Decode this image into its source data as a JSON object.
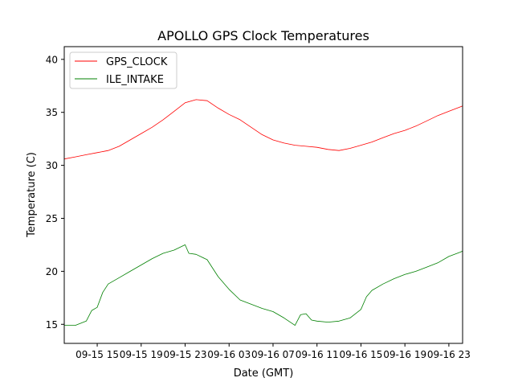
{
  "chart_data": {
    "type": "line",
    "title": "APOLLO GPS Clock Temperatures",
    "xlabel": "Date (GMT)",
    "ylabel": "Temperature (C)",
    "xlim": [
      "09-15 12:00",
      "09-17 00:15"
    ],
    "ylim": [
      13.2,
      41.2
    ],
    "xticks": [
      "09-15 15",
      "09-15 19",
      "09-15 23",
      "09-16 03",
      "09-16 07",
      "09-16 11",
      "09-16 15",
      "09-16 19",
      "09-16 23"
    ],
    "yticks": [
      15,
      20,
      25,
      30,
      35,
      40
    ],
    "grid": false,
    "legend_position": "top-left",
    "series": [
      {
        "name": "GPS_CLOCK",
        "color": "#ff0000",
        "points": [
          [
            "09-15 12:00",
            30.6
          ],
          [
            "09-15 13:00",
            30.8
          ],
          [
            "09-15 14:00",
            31.0
          ],
          [
            "09-15 15:00",
            31.2
          ],
          [
            "09-15 16:00",
            31.4
          ],
          [
            "09-15 17:00",
            31.8
          ],
          [
            "09-15 18:00",
            32.4
          ],
          [
            "09-15 19:00",
            33.0
          ],
          [
            "09-15 20:00",
            33.6
          ],
          [
            "09-15 21:00",
            34.3
          ],
          [
            "09-15 22:00",
            35.1
          ],
          [
            "09-15 23:00",
            35.9
          ],
          [
            "09-16 00:00",
            36.2
          ],
          [
            "09-16 01:00",
            36.1
          ],
          [
            "09-16 02:00",
            35.4
          ],
          [
            "09-16 03:00",
            34.8
          ],
          [
            "09-16 04:00",
            34.3
          ],
          [
            "09-16 05:00",
            33.6
          ],
          [
            "09-16 06:00",
            32.9
          ],
          [
            "09-16 07:00",
            32.4
          ],
          [
            "09-16 08:00",
            32.1
          ],
          [
            "09-16 09:00",
            31.9
          ],
          [
            "09-16 10:00",
            31.8
          ],
          [
            "09-16 11:00",
            31.7
          ],
          [
            "09-16 12:00",
            31.5
          ],
          [
            "09-16 13:00",
            31.4
          ],
          [
            "09-16 14:00",
            31.6
          ],
          [
            "09-16 15:00",
            31.9
          ],
          [
            "09-16 16:00",
            32.2
          ],
          [
            "09-16 17:00",
            32.6
          ],
          [
            "09-16 18:00",
            33.0
          ],
          [
            "09-16 19:00",
            33.3
          ],
          [
            "09-16 20:00",
            33.7
          ],
          [
            "09-16 21:00",
            34.2
          ],
          [
            "09-16 22:00",
            34.7
          ],
          [
            "09-16 23:00",
            35.1
          ],
          [
            "09-17 00:00",
            35.5
          ],
          [
            "09-17 00:15",
            35.6
          ]
        ]
      },
      {
        "name": "ILE_INTAKE",
        "color": "#008000",
        "points": [
          [
            "09-15 12:00",
            14.9
          ],
          [
            "09-15 13:00",
            14.9
          ],
          [
            "09-15 14:00",
            15.3
          ],
          [
            "09-15 14:30",
            16.3
          ],
          [
            "09-15 15:00",
            16.6
          ],
          [
            "09-15 15:30",
            18.0
          ],
          [
            "09-15 16:00",
            18.8
          ],
          [
            "09-15 17:00",
            19.4
          ],
          [
            "09-15 18:00",
            20.0
          ],
          [
            "09-15 19:00",
            20.6
          ],
          [
            "09-15 20:00",
            21.2
          ],
          [
            "09-15 21:00",
            21.7
          ],
          [
            "09-15 22:00",
            22.0
          ],
          [
            "09-15 23:00",
            22.5
          ],
          [
            "09-15 23:20",
            21.7
          ],
          [
            "09-16 00:00",
            21.6
          ],
          [
            "09-16 01:00",
            21.1
          ],
          [
            "09-16 02:00",
            19.5
          ],
          [
            "09-16 03:00",
            18.3
          ],
          [
            "09-16 04:00",
            17.3
          ],
          [
            "09-16 05:00",
            16.9
          ],
          [
            "09-16 06:00",
            16.5
          ],
          [
            "09-16 07:00",
            16.2
          ],
          [
            "09-16 08:00",
            15.6
          ],
          [
            "09-16 09:00",
            14.9
          ],
          [
            "09-16 09:30",
            15.9
          ],
          [
            "09-16 10:00",
            16.0
          ],
          [
            "09-16 10:30",
            15.4
          ],
          [
            "09-16 11:00",
            15.3
          ],
          [
            "09-16 12:00",
            15.2
          ],
          [
            "09-16 13:00",
            15.3
          ],
          [
            "09-16 14:00",
            15.6
          ],
          [
            "09-16 15:00",
            16.4
          ],
          [
            "09-16 15:30",
            17.6
          ],
          [
            "09-16 16:00",
            18.2
          ],
          [
            "09-16 17:00",
            18.8
          ],
          [
            "09-16 18:00",
            19.3
          ],
          [
            "09-16 19:00",
            19.7
          ],
          [
            "09-16 20:00",
            20.0
          ],
          [
            "09-16 21:00",
            20.4
          ],
          [
            "09-16 22:00",
            20.8
          ],
          [
            "09-16 23:00",
            21.4
          ],
          [
            "09-17 00:00",
            21.8
          ],
          [
            "09-17 00:15",
            21.9
          ]
        ]
      }
    ]
  }
}
